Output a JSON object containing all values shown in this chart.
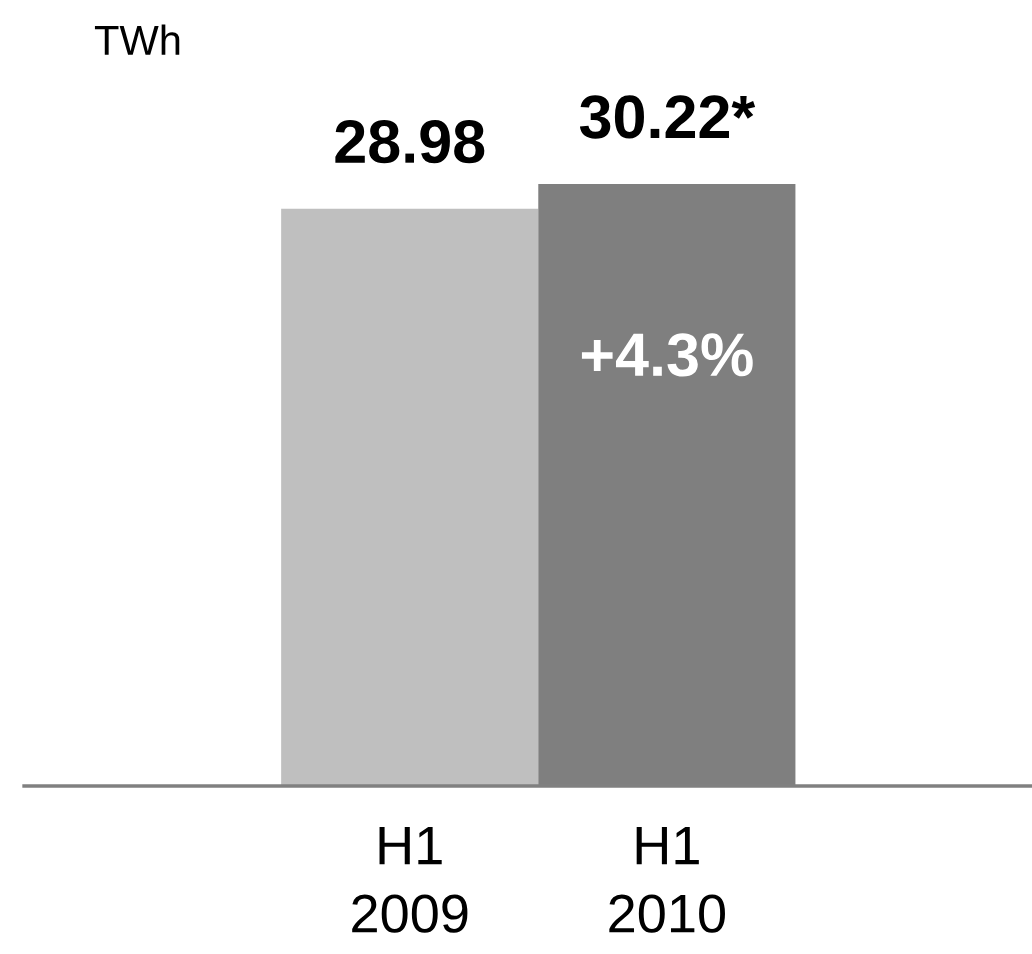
{
  "chart_data": {
    "type": "bar",
    "ylabel": "TWh",
    "categories": [
      "H1\n2009",
      "H1\n2010"
    ],
    "values": [
      28.98,
      30.22
    ],
    "colors": [
      "#bfbfbf",
      "#7f7f7f"
    ],
    "value_labels": [
      "28.98",
      "30.22*"
    ],
    "annotations": [
      "+4.3%"
    ]
  }
}
